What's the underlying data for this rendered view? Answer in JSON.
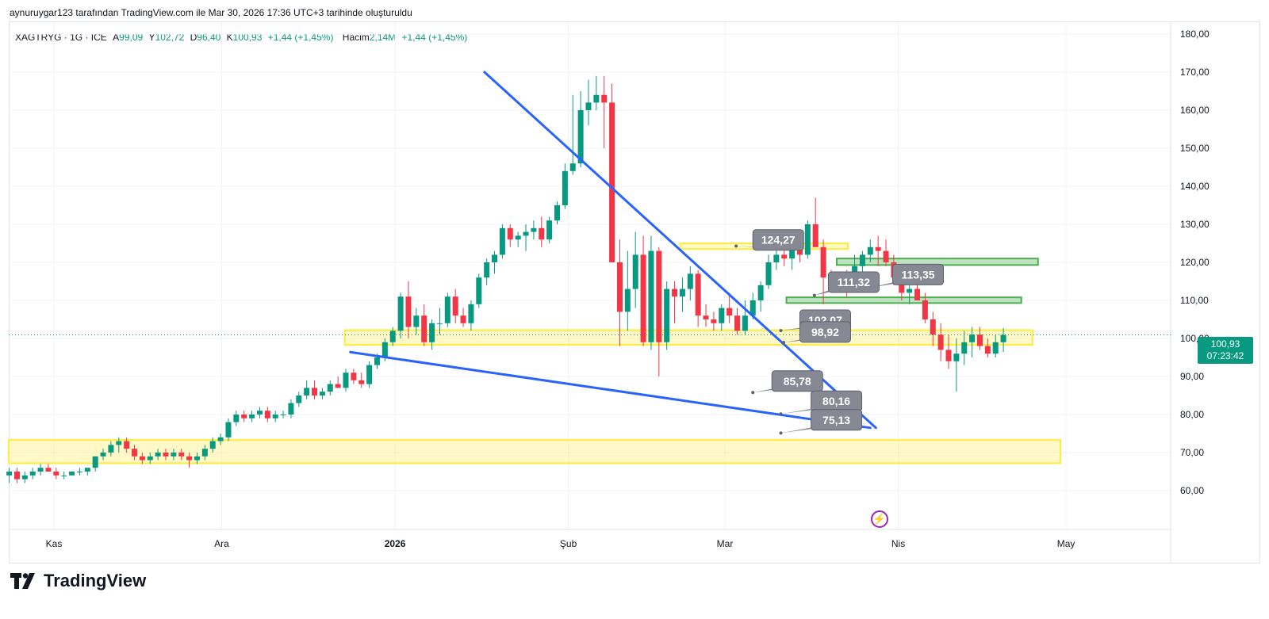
{
  "header": {
    "credit": "aynuruygar123 tarafından TradingView.com ile Mar 30, 2026 17:36 UTC+3 tarihinde oluşturuldu"
  },
  "legend": {
    "symbol": "XAGTRYG · 1G · ICE",
    "open_label": "A",
    "open": "99,09",
    "high_label": "Y",
    "high": "102,72",
    "low_label": "D",
    "low": "96,40",
    "close_label": "K",
    "close": "100,93",
    "change": "+1,44 (+1,45%)",
    "volume_label": "Hacim",
    "volume": "2,14M",
    "volume_change": "+1,44 (+1,45%)"
  },
  "price_tag": {
    "price": "100,93",
    "countdown": "07:23:42"
  },
  "brand": {
    "name": "TradingView"
  },
  "colors": {
    "up": "#089981",
    "down": "#f23645",
    "trend": "#2962ff",
    "zone_yellow": "#ffeb3b",
    "zone_green": "#4caf50",
    "callout": "#868993"
  },
  "chart_data": {
    "type": "candlestick",
    "ylim": [
      50.5,
      182
    ],
    "y_ticks": [
      "60,00",
      "70,00",
      "80,00",
      "90,00",
      "100,00",
      "110,00",
      "120,00",
      "130,00",
      "140,00",
      "150,00",
      "160,00",
      "170,00",
      "180,00"
    ],
    "x_ticks": [
      {
        "label": "Kas",
        "bold": false
      },
      {
        "label": "Ara",
        "bold": false
      },
      {
        "label": "2026",
        "bold": true
      },
      {
        "label": "Şub",
        "bold": false
      },
      {
        "label": "Mar",
        "bold": false
      },
      {
        "label": "Nis",
        "bold": false
      },
      {
        "label": "May",
        "bold": false
      }
    ],
    "x_tick_days": [
      0,
      30,
      61,
      92,
      120,
      151,
      181
    ],
    "first_day_offset": -8,
    "candles": [
      [
        64,
        66,
        62,
        65
      ],
      [
        65,
        66,
        62,
        63
      ],
      [
        63,
        65,
        62,
        64
      ],
      [
        64,
        66,
        63,
        65
      ],
      [
        65,
        67,
        64,
        66
      ],
      [
        66,
        67,
        65,
        65
      ],
      [
        65,
        66,
        63,
        64
      ],
      [
        64,
        65,
        63,
        64
      ],
      [
        64,
        65,
        64,
        65
      ],
      [
        65,
        66,
        64,
        65
      ],
      [
        65,
        66,
        64,
        66
      ],
      [
        66,
        69,
        65,
        69
      ],
      [
        69,
        71,
        68,
        70
      ],
      [
        70,
        73,
        69,
        72
      ],
      [
        72,
        74,
        70,
        73
      ],
      [
        73,
        74,
        70,
        71
      ],
      [
        71,
        72,
        68,
        69
      ],
      [
        69,
        70,
        67,
        68
      ],
      [
        68,
        70,
        67,
        69
      ],
      [
        69,
        71,
        68,
        70
      ],
      [
        70,
        71,
        68,
        69
      ],
      [
        69,
        71,
        68,
        70
      ],
      [
        70,
        71,
        68,
        69
      ],
      [
        69,
        70,
        66,
        68
      ],
      [
        68,
        70,
        67,
        69
      ],
      [
        69,
        72,
        68,
        71
      ],
      [
        71,
        74,
        70,
        73
      ],
      [
        73,
        75,
        72,
        74
      ],
      [
        74,
        79,
        73,
        78
      ],
      [
        78,
        81,
        77,
        80
      ],
      [
        80,
        81,
        78,
        79
      ],
      [
        79,
        81,
        78,
        80
      ],
      [
        80,
        82,
        79,
        81
      ],
      [
        81,
        82,
        78,
        79
      ],
      [
        79,
        81,
        78,
        80
      ],
      [
        80,
        81,
        79,
        80
      ],
      [
        80,
        84,
        79,
        83
      ],
      [
        83,
        86,
        82,
        85
      ],
      [
        85,
        89,
        84,
        87
      ],
      [
        87,
        89,
        84,
        85
      ],
      [
        85,
        87,
        84,
        86
      ],
      [
        86,
        89,
        85,
        88
      ],
      [
        88,
        90,
        87,
        87
      ],
      [
        87,
        92,
        86,
        91
      ],
      [
        91,
        92,
        88,
        89
      ],
      [
        89,
        91,
        87,
        88
      ],
      [
        88,
        94,
        87,
        93
      ],
      [
        93,
        96,
        92,
        95
      ],
      [
        95,
        100,
        94,
        99
      ],
      [
        99,
        103,
        98,
        102
      ],
      [
        102,
        112,
        100,
        111
      ],
      [
        111,
        115,
        100,
        103
      ],
      [
        103,
        108,
        101,
        106
      ],
      [
        106,
        109,
        98,
        99
      ],
      [
        99,
        105,
        97,
        104
      ],
      [
        104,
        108,
        101,
        104
      ],
      [
        104,
        112,
        103,
        111
      ],
      [
        111,
        113,
        104,
        106
      ],
      [
        106,
        108,
        103,
        104
      ],
      [
        104,
        110,
        102,
        109
      ],
      [
        109,
        117,
        108,
        116
      ],
      [
        116,
        121,
        114,
        120
      ],
      [
        120,
        123,
        117,
        122
      ],
      [
        122,
        130,
        121,
        129
      ],
      [
        129,
        130,
        124,
        126
      ],
      [
        126,
        128,
        124,
        127
      ],
      [
        127,
        130,
        123,
        128
      ],
      [
        128,
        131,
        126,
        129
      ],
      [
        129,
        132,
        124,
        126
      ],
      [
        126,
        132,
        125,
        131
      ],
      [
        131,
        136,
        130,
        135
      ],
      [
        135,
        146,
        134,
        144
      ],
      [
        144,
        164,
        143,
        146
      ],
      [
        146,
        165,
        145,
        160
      ],
      [
        160,
        168,
        156,
        162
      ],
      [
        162,
        169,
        160,
        164
      ],
      [
        164,
        169,
        150,
        162
      ],
      [
        162,
        167,
        120,
        120
      ],
      [
        120,
        126,
        98,
        107
      ],
      [
        107,
        123,
        102,
        113
      ],
      [
        113,
        128,
        108,
        122
      ],
      [
        122,
        127,
        98,
        99
      ],
      [
        99,
        127,
        97,
        123
      ],
      [
        123,
        124,
        90,
        99
      ],
      [
        99,
        115,
        97,
        113
      ],
      [
        113,
        115,
        104,
        111
      ],
      [
        111,
        116,
        107,
        113
      ],
      [
        113,
        119,
        110,
        117
      ],
      [
        117,
        118,
        103,
        106
      ],
      [
        106,
        109,
        103,
        105
      ],
      [
        105,
        107,
        102,
        104
      ],
      [
        104,
        109,
        102,
        108
      ],
      [
        108,
        112,
        104,
        106
      ],
      [
        106,
        108,
        101,
        102
      ],
      [
        102,
        110,
        101,
        106
      ],
      [
        106,
        112,
        105,
        110
      ],
      [
        110,
        115,
        107,
        114
      ],
      [
        114,
        122,
        113,
        120
      ],
      [
        120,
        124,
        118,
        122
      ],
      [
        122,
        125,
        119,
        121
      ],
      [
        121,
        125,
        118,
        124
      ],
      [
        124,
        127,
        120,
        122
      ],
      [
        122,
        131,
        121,
        130
      ],
      [
        130,
        137,
        125,
        124
      ],
      [
        124,
        126,
        109,
        116
      ],
      [
        116,
        118,
        112,
        114
      ],
      [
        114,
        117,
        112,
        116
      ],
      [
        116,
        118,
        111,
        114
      ],
      [
        114,
        122,
        113,
        119
      ],
      [
        119,
        123,
        116,
        122
      ],
      [
        122,
        126,
        120,
        124
      ],
      [
        124,
        127,
        119,
        123
      ],
      [
        123,
        126,
        119,
        120
      ],
      [
        120,
        122,
        114,
        116
      ],
      [
        116,
        118,
        110,
        112
      ],
      [
        112,
        116,
        109,
        113
      ],
      [
        113,
        116,
        110,
        110
      ],
      [
        110,
        112,
        104,
        105
      ],
      [
        105,
        107,
        98,
        101
      ],
      [
        101,
        104,
        94,
        97
      ],
      [
        97,
        101,
        92,
        94
      ],
      [
        94,
        100,
        86,
        96
      ],
      [
        96,
        102,
        93,
        99
      ],
      [
        99,
        103,
        95,
        101
      ],
      [
        101,
        103,
        97,
        98
      ],
      [
        98,
        100,
        95,
        96
      ],
      [
        96,
        101,
        95,
        99
      ],
      [
        99,
        102.72,
        96.4,
        100.93
      ]
    ],
    "trend_lines": [
      {
        "from": [
          77,
          170
        ],
        "to": [
          147,
          76.5
        ]
      },
      {
        "from": [
          53,
          96.4
        ],
        "to": [
          146,
          76.5
        ]
      }
    ],
    "zones": [
      {
        "x_from": -9,
        "x_to": 180,
        "y_from": 67.2,
        "y_to": 73.3,
        "color": "yellow"
      },
      {
        "x_from": 52,
        "x_to": 175,
        "y_from": 98.3,
        "y_to": 102.2,
        "color": "yellow"
      },
      {
        "x_from": 112,
        "x_to": 142,
        "y_from": 123.5,
        "y_to": 125.0,
        "color": "yellow"
      },
      {
        "x_from": 140,
        "x_to": 176,
        "y_from": 119.3,
        "y_to": 121.0,
        "color": "green"
      },
      {
        "x_from": 131,
        "x_to": 173,
        "y_from": 109.3,
        "y_to": 110.8,
        "color": "green"
      }
    ],
    "annotations": [
      {
        "text": "124,27",
        "anchor": [
          122,
          124.27
        ],
        "box_day": 125.0,
        "box_y": 128.6
      },
      {
        "text": "113,35",
        "anchor": [
          146,
          113.35
        ],
        "box_day": 150.0,
        "box_y": 119.5
      },
      {
        "text": "111,32",
        "anchor": [
          136,
          111.32
        ],
        "box_day": 138.5,
        "box_y": 117.5
      },
      {
        "text": "102,07",
        "anchor": [
          130,
          102.07
        ],
        "box_day": 133.4,
        "box_y": 107.5
      },
      {
        "text": "98,92",
        "anchor": [
          130.5,
          98.92
        ],
        "box_day": 133.4,
        "box_y": 104.4
      },
      {
        "text": "85,78",
        "anchor": [
          125,
          85.78
        ],
        "box_day": 128.4,
        "box_y": 91.5
      },
      {
        "text": "80,16",
        "anchor": [
          130,
          80.16
        ],
        "box_day": 135.4,
        "box_y": 86.2
      },
      {
        "text": "75,13",
        "anchor": [
          130,
          75.13
        ],
        "box_day": 135.4,
        "box_y": 81.3
      }
    ]
  }
}
